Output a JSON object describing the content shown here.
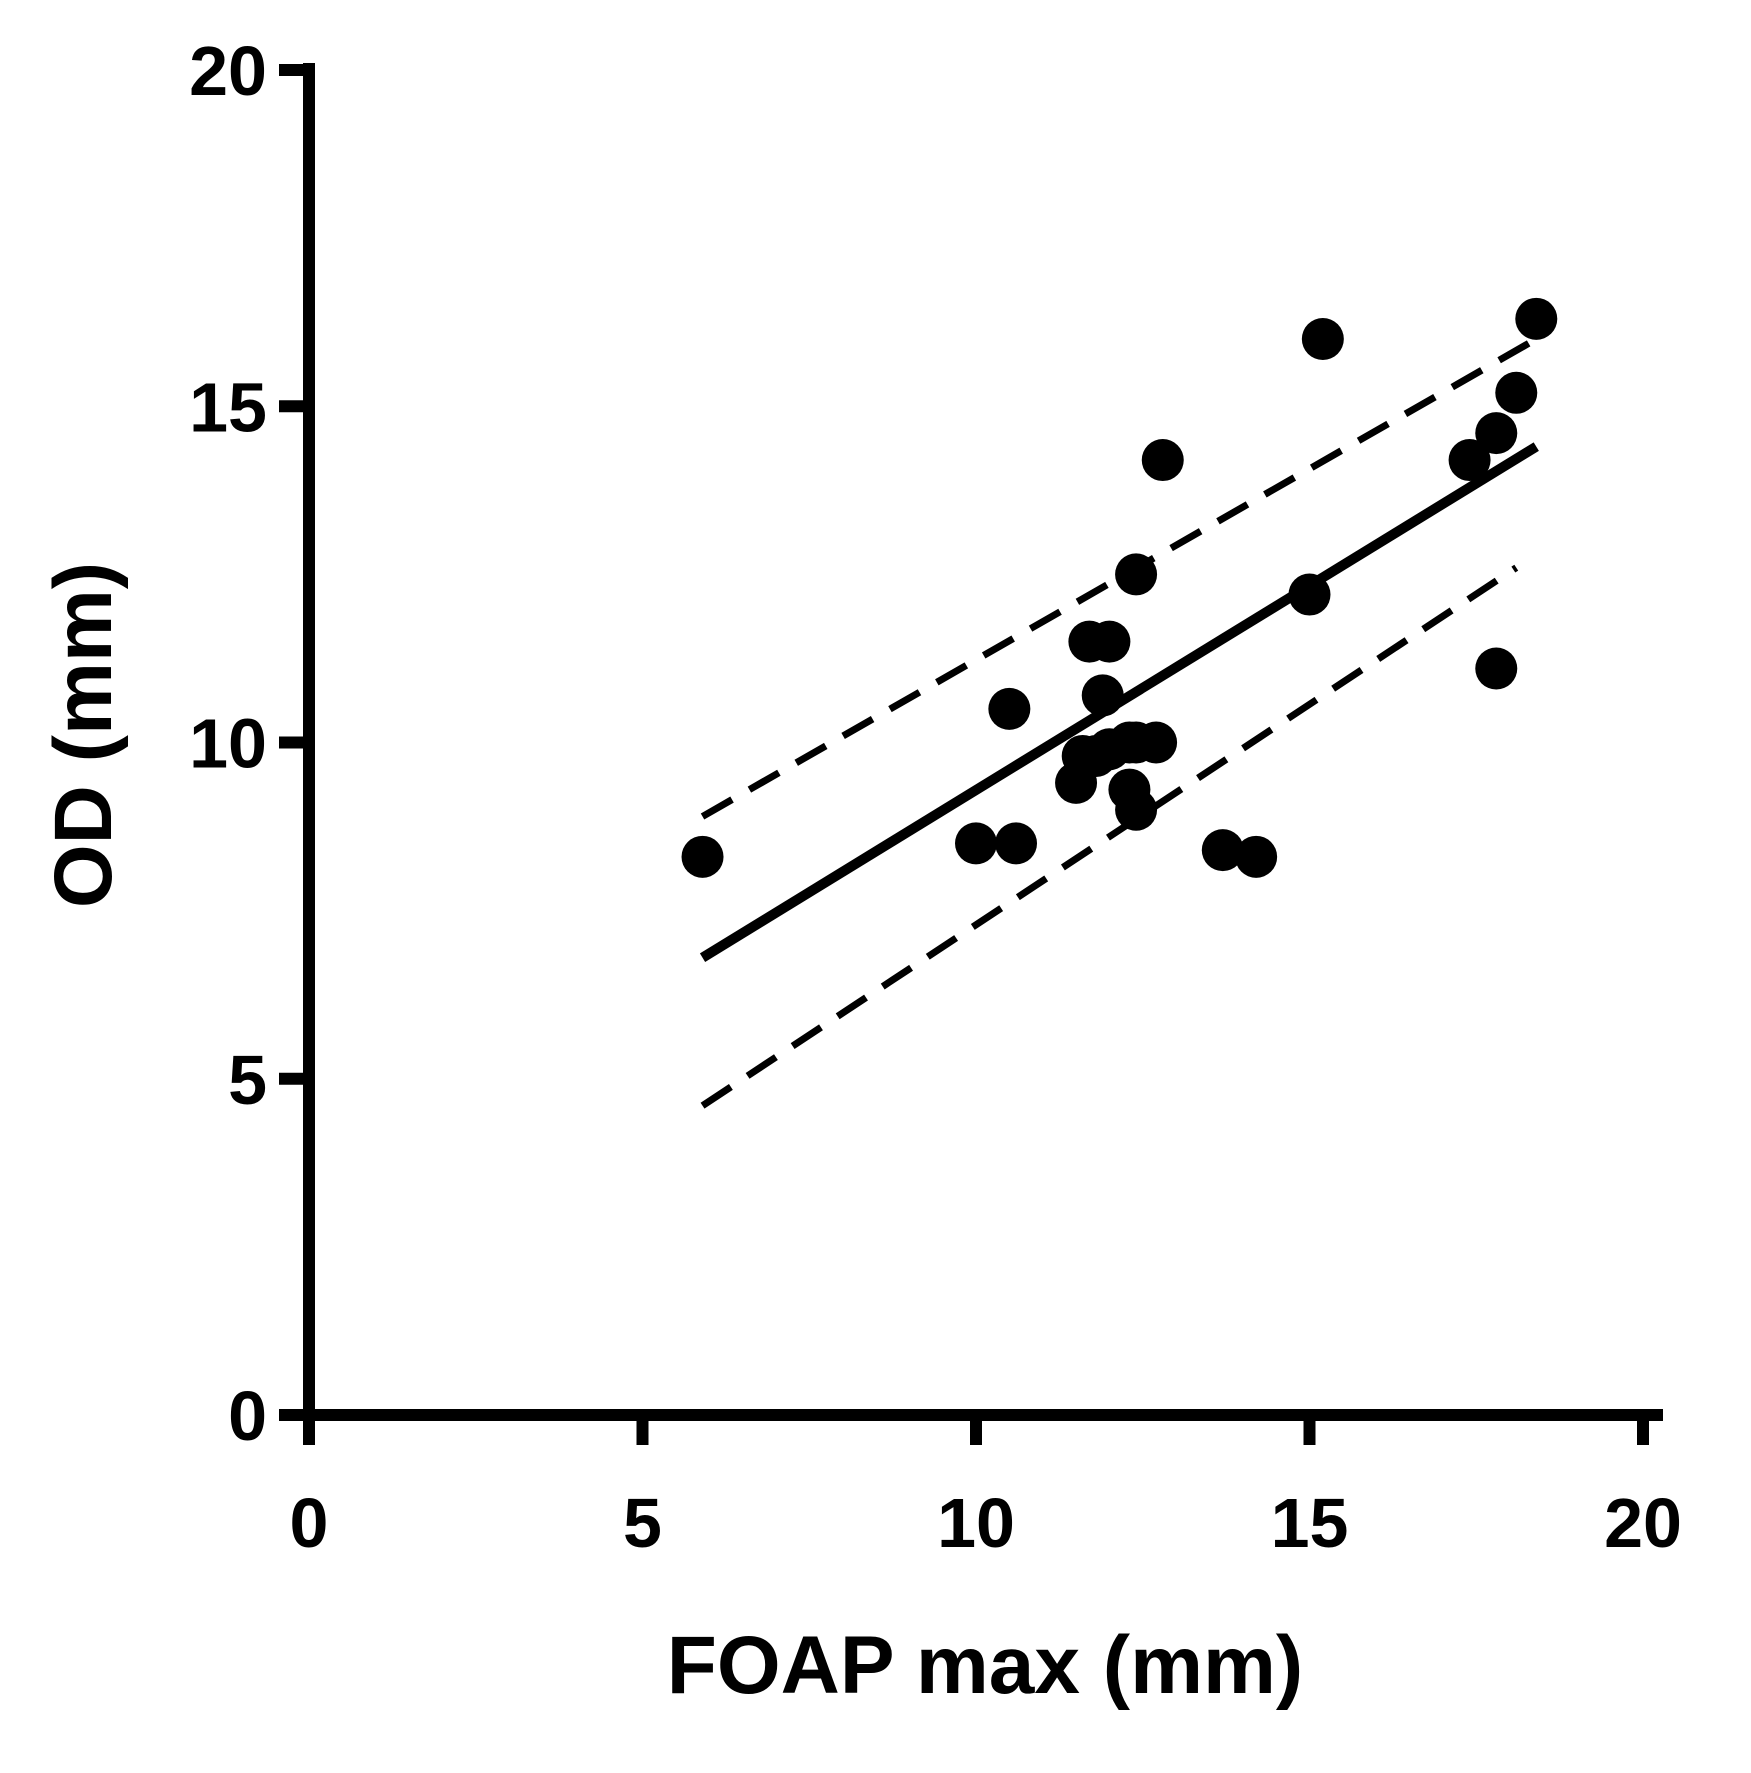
{
  "chart_data": {
    "type": "scatter",
    "title": "",
    "xlabel": "FOAP max (mm)",
    "ylabel": "OD (mm)",
    "xlim": [
      0,
      20
    ],
    "ylim": [
      0,
      20
    ],
    "xticks": [
      0,
      5,
      10,
      15,
      20
    ],
    "yticks": [
      0,
      5,
      10,
      15,
      20
    ],
    "xtick_labels": [
      "0",
      "5",
      "10",
      "15",
      "20"
    ],
    "ytick_labels": [
      "0",
      "5",
      "10",
      "15",
      "20"
    ],
    "grid": false,
    "legend": "none",
    "colors": {
      "ink": "#000000",
      "background": "#ffffff"
    },
    "series": [
      {
        "kind": "points",
        "x": [
          5.9,
          10.0,
          10.5,
          10.6,
          11.5,
          11.6,
          11.7,
          11.8,
          11.9,
          12.0,
          12.0,
          12.3,
          12.3,
          12.4,
          12.4,
          12.4,
          12.7,
          12.8,
          13.7,
          14.2,
          15.0,
          15.2,
          17.4,
          17.8,
          17.8,
          18.1,
          18.4
        ],
        "y": [
          8.3,
          8.5,
          10.5,
          8.5,
          9.4,
          9.8,
          11.5,
          9.8,
          10.7,
          11.5,
          9.9,
          10.0,
          9.3,
          9.0,
          12.5,
          10.0,
          10.0,
          14.2,
          8.4,
          8.3,
          12.2,
          16.0,
          14.2,
          14.6,
          11.1,
          15.2,
          16.3
        ]
      },
      {
        "kind": "regression_line",
        "style": "solid",
        "x": [
          5.9,
          18.4
        ],
        "y": [
          6.8,
          14.4
        ]
      },
      {
        "kind": "confidence_band_upper",
        "style": "dashed",
        "x": [
          5.9,
          18.4
        ],
        "y": [
          8.9,
          16.0
        ]
      },
      {
        "kind": "confidence_band_lower",
        "style": "dashed",
        "x": [
          5.9,
          18.1
        ],
        "y": [
          4.6,
          12.6
        ]
      }
    ]
  }
}
